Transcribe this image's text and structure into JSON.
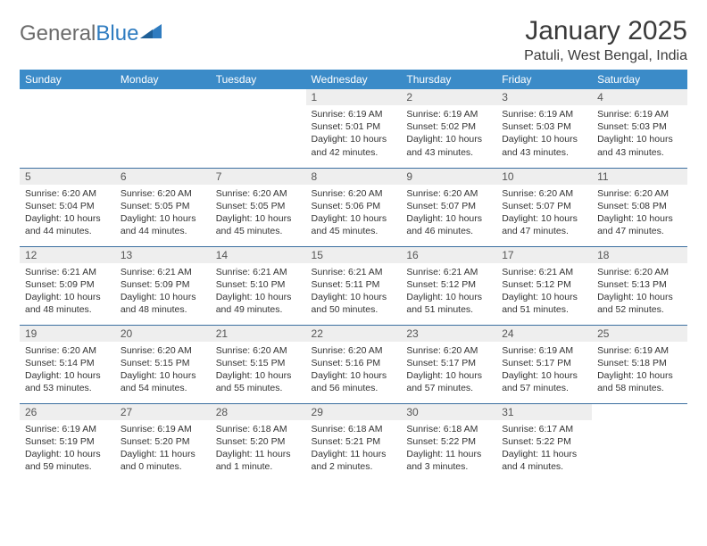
{
  "logo": {
    "text1": "General",
    "text2": "Blue"
  },
  "title": "January 2025",
  "location": "Patuli, West Bengal, India",
  "colors": {
    "header_bg": "#3b8bc8",
    "header_text": "#ffffff",
    "daynum_bg": "#eeeeee",
    "row_border": "#3b6fa0",
    "logo_gray": "#6b6b6b",
    "logo_blue": "#2f7cc0"
  },
  "weekdays": [
    "Sunday",
    "Monday",
    "Tuesday",
    "Wednesday",
    "Thursday",
    "Friday",
    "Saturday"
  ],
  "weeks": [
    [
      null,
      null,
      null,
      {
        "n": "1",
        "sr": "6:19 AM",
        "ss": "5:01 PM",
        "dl": "10 hours and 42 minutes."
      },
      {
        "n": "2",
        "sr": "6:19 AM",
        "ss": "5:02 PM",
        "dl": "10 hours and 43 minutes."
      },
      {
        "n": "3",
        "sr": "6:19 AM",
        "ss": "5:03 PM",
        "dl": "10 hours and 43 minutes."
      },
      {
        "n": "4",
        "sr": "6:19 AM",
        "ss": "5:03 PM",
        "dl": "10 hours and 43 minutes."
      }
    ],
    [
      {
        "n": "5",
        "sr": "6:20 AM",
        "ss": "5:04 PM",
        "dl": "10 hours and 44 minutes."
      },
      {
        "n": "6",
        "sr": "6:20 AM",
        "ss": "5:05 PM",
        "dl": "10 hours and 44 minutes."
      },
      {
        "n": "7",
        "sr": "6:20 AM",
        "ss": "5:05 PM",
        "dl": "10 hours and 45 minutes."
      },
      {
        "n": "8",
        "sr": "6:20 AM",
        "ss": "5:06 PM",
        "dl": "10 hours and 45 minutes."
      },
      {
        "n": "9",
        "sr": "6:20 AM",
        "ss": "5:07 PM",
        "dl": "10 hours and 46 minutes."
      },
      {
        "n": "10",
        "sr": "6:20 AM",
        "ss": "5:07 PM",
        "dl": "10 hours and 47 minutes."
      },
      {
        "n": "11",
        "sr": "6:20 AM",
        "ss": "5:08 PM",
        "dl": "10 hours and 47 minutes."
      }
    ],
    [
      {
        "n": "12",
        "sr": "6:21 AM",
        "ss": "5:09 PM",
        "dl": "10 hours and 48 minutes."
      },
      {
        "n": "13",
        "sr": "6:21 AM",
        "ss": "5:09 PM",
        "dl": "10 hours and 48 minutes."
      },
      {
        "n": "14",
        "sr": "6:21 AM",
        "ss": "5:10 PM",
        "dl": "10 hours and 49 minutes."
      },
      {
        "n": "15",
        "sr": "6:21 AM",
        "ss": "5:11 PM",
        "dl": "10 hours and 50 minutes."
      },
      {
        "n": "16",
        "sr": "6:21 AM",
        "ss": "5:12 PM",
        "dl": "10 hours and 51 minutes."
      },
      {
        "n": "17",
        "sr": "6:21 AM",
        "ss": "5:12 PM",
        "dl": "10 hours and 51 minutes."
      },
      {
        "n": "18",
        "sr": "6:20 AM",
        "ss": "5:13 PM",
        "dl": "10 hours and 52 minutes."
      }
    ],
    [
      {
        "n": "19",
        "sr": "6:20 AM",
        "ss": "5:14 PM",
        "dl": "10 hours and 53 minutes."
      },
      {
        "n": "20",
        "sr": "6:20 AM",
        "ss": "5:15 PM",
        "dl": "10 hours and 54 minutes."
      },
      {
        "n": "21",
        "sr": "6:20 AM",
        "ss": "5:15 PM",
        "dl": "10 hours and 55 minutes."
      },
      {
        "n": "22",
        "sr": "6:20 AM",
        "ss": "5:16 PM",
        "dl": "10 hours and 56 minutes."
      },
      {
        "n": "23",
        "sr": "6:20 AM",
        "ss": "5:17 PM",
        "dl": "10 hours and 57 minutes."
      },
      {
        "n": "24",
        "sr": "6:19 AM",
        "ss": "5:17 PM",
        "dl": "10 hours and 57 minutes."
      },
      {
        "n": "25",
        "sr": "6:19 AM",
        "ss": "5:18 PM",
        "dl": "10 hours and 58 minutes."
      }
    ],
    [
      {
        "n": "26",
        "sr": "6:19 AM",
        "ss": "5:19 PM",
        "dl": "10 hours and 59 minutes."
      },
      {
        "n": "27",
        "sr": "6:19 AM",
        "ss": "5:20 PM",
        "dl": "11 hours and 0 minutes."
      },
      {
        "n": "28",
        "sr": "6:18 AM",
        "ss": "5:20 PM",
        "dl": "11 hours and 1 minute."
      },
      {
        "n": "29",
        "sr": "6:18 AM",
        "ss": "5:21 PM",
        "dl": "11 hours and 2 minutes."
      },
      {
        "n": "30",
        "sr": "6:18 AM",
        "ss": "5:22 PM",
        "dl": "11 hours and 3 minutes."
      },
      {
        "n": "31",
        "sr": "6:17 AM",
        "ss": "5:22 PM",
        "dl": "11 hours and 4 minutes."
      },
      null
    ]
  ],
  "labels": {
    "sunrise": "Sunrise:",
    "sunset": "Sunset:",
    "daylight": "Daylight:"
  }
}
